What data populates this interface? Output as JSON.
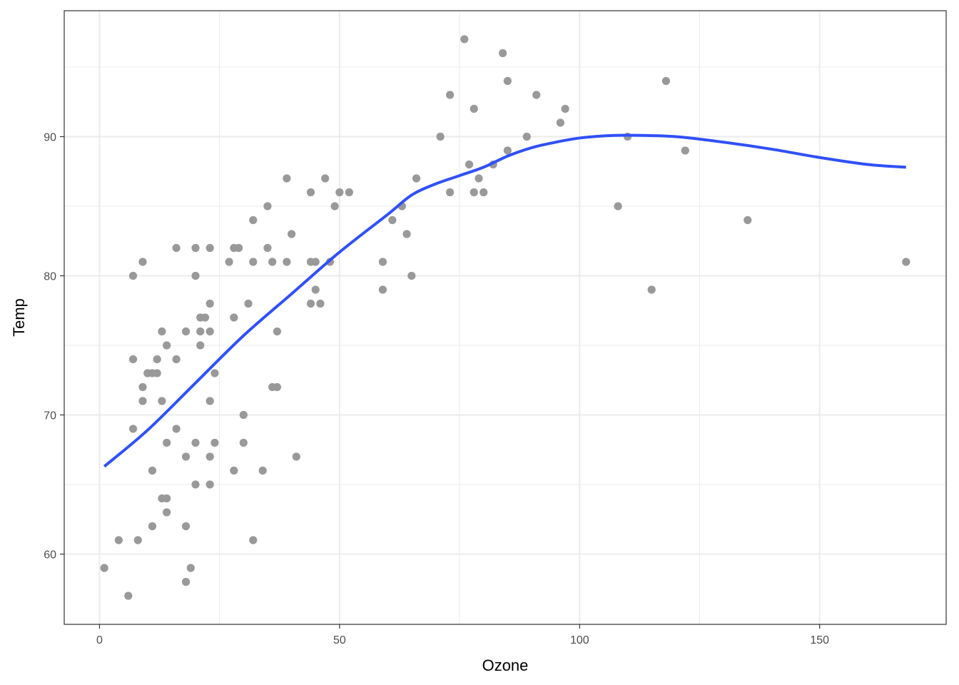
{
  "chart_data": {
    "type": "scatter",
    "title": "",
    "xlabel": "Ozone",
    "ylabel": "Temp",
    "xlim": [
      -7.35,
      176.35
    ],
    "ylim": [
      54.95,
      99.05
    ],
    "x_ticks": [
      0,
      50,
      100,
      150
    ],
    "x_tick_labels": [
      "0",
      "50",
      "100",
      "150"
    ],
    "y_ticks": [
      60,
      70,
      80,
      90
    ],
    "y_tick_labels": [
      "60",
      "70",
      "80",
      "90"
    ],
    "x_minor_ticks": [
      25,
      75,
      125
    ],
    "y_minor_ticks": [
      65,
      75,
      85,
      95
    ],
    "grid": true,
    "point_color": "#999999",
    "smooth_color": "#3050f8",
    "panel_border_color": "#333333",
    "grid_color": "#ebebeb",
    "points": [
      [
        1,
        59
      ],
      [
        4,
        61
      ],
      [
        6,
        57
      ],
      [
        7,
        80
      ],
      [
        7,
        74
      ],
      [
        7,
        69
      ],
      [
        8,
        61
      ],
      [
        9,
        81
      ],
      [
        9,
        72
      ],
      [
        9,
        71
      ],
      [
        10,
        73
      ],
      [
        11,
        73
      ],
      [
        11,
        66
      ],
      [
        11,
        62
      ],
      [
        12,
        74
      ],
      [
        12,
        73
      ],
      [
        13,
        76
      ],
      [
        13,
        71
      ],
      [
        13,
        64
      ],
      [
        14,
        75
      ],
      [
        14,
        68
      ],
      [
        14,
        64
      ],
      [
        14,
        63
      ],
      [
        16,
        82
      ],
      [
        16,
        74
      ],
      [
        16,
        69
      ],
      [
        18,
        76
      ],
      [
        18,
        67
      ],
      [
        18,
        62
      ],
      [
        18,
        58
      ],
      [
        19,
        59
      ],
      [
        20,
        82
      ],
      [
        20,
        80
      ],
      [
        20,
        68
      ],
      [
        20,
        65
      ],
      [
        21,
        77
      ],
      [
        21,
        76
      ],
      [
        21,
        75
      ],
      [
        22,
        77
      ],
      [
        23,
        82
      ],
      [
        23,
        78
      ],
      [
        23,
        76
      ],
      [
        23,
        71
      ],
      [
        23,
        67
      ],
      [
        23,
        65
      ],
      [
        24,
        73
      ],
      [
        24,
        68
      ],
      [
        27,
        81
      ],
      [
        28,
        82
      ],
      [
        28,
        77
      ],
      [
        28,
        66
      ],
      [
        29,
        82
      ],
      [
        30,
        70
      ],
      [
        30,
        68
      ],
      [
        31,
        78
      ],
      [
        32,
        84
      ],
      [
        32,
        81
      ],
      [
        32,
        61
      ],
      [
        34,
        66
      ],
      [
        35,
        85
      ],
      [
        35,
        82
      ],
      [
        36,
        81
      ],
      [
        36,
        72
      ],
      [
        37,
        76
      ],
      [
        37,
        72
      ],
      [
        39,
        87
      ],
      [
        39,
        81
      ],
      [
        40,
        83
      ],
      [
        41,
        67
      ],
      [
        44,
        86
      ],
      [
        44,
        81
      ],
      [
        44,
        78
      ],
      [
        45,
        81
      ],
      [
        45,
        79
      ],
      [
        46,
        78
      ],
      [
        47,
        87
      ],
      [
        48,
        81
      ],
      [
        49,
        85
      ],
      [
        50,
        86
      ],
      [
        52,
        86
      ],
      [
        59,
        81
      ],
      [
        59,
        79
      ],
      [
        61,
        84
      ],
      [
        63,
        85
      ],
      [
        64,
        83
      ],
      [
        65,
        80
      ],
      [
        66,
        87
      ],
      [
        71,
        90
      ],
      [
        73,
        93
      ],
      [
        73,
        86
      ],
      [
        76,
        97
      ],
      [
        77,
        88
      ],
      [
        78,
        92
      ],
      [
        78,
        86
      ],
      [
        79,
        87
      ],
      [
        80,
        86
      ],
      [
        82,
        88
      ],
      [
        84,
        96
      ],
      [
        85,
        94
      ],
      [
        85,
        89
      ],
      [
        89,
        90
      ],
      [
        91,
        93
      ],
      [
        96,
        91
      ],
      [
        97,
        92
      ],
      [
        108,
        85
      ],
      [
        110,
        90
      ],
      [
        115,
        79
      ],
      [
        118,
        94
      ],
      [
        122,
        89
      ],
      [
        135,
        84
      ],
      [
        168,
        81
      ]
    ],
    "smooth_line": {
      "x": [
        1,
        10,
        20,
        30,
        40,
        50,
        60,
        65,
        70,
        75,
        80,
        85,
        90,
        95,
        100,
        105,
        110,
        120,
        130,
        140,
        150,
        160,
        168
      ],
      "y": [
        66.3,
        68.9,
        72.3,
        75.7,
        78.7,
        81.7,
        84.4,
        85.8,
        86.6,
        87.2,
        87.8,
        88.6,
        89.2,
        89.6,
        89.9,
        90.05,
        90.1,
        90.0,
        89.6,
        89.1,
        88.5,
        88.0,
        87.8
      ]
    }
  }
}
